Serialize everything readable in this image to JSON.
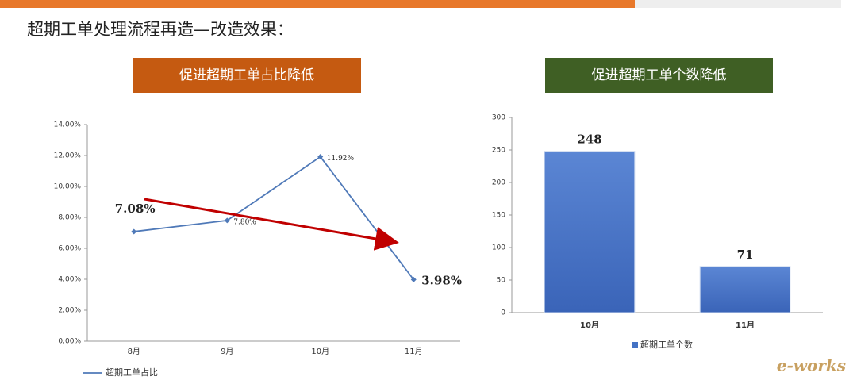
{
  "title": "超期工单处理流程再造—改造效果：",
  "logo": "e-works",
  "chart_data": [
    {
      "type": "line",
      "title": "促进超期工单占比降低",
      "title_color": "#c55a11",
      "categories": [
        "8月",
        "9月",
        "10月",
        "11月"
      ],
      "series": [
        {
          "name": "超期工单占比",
          "color": "#4f79b8",
          "values": [
            7.08,
            7.8,
            11.92,
            3.98
          ],
          "value_labels": [
            "7.08%",
            "7.80%",
            "11.92%",
            "3.98%"
          ]
        }
      ],
      "ylim": [
        0,
        14
      ],
      "yticks": [
        {
          "value": 0,
          "label": "0.00%"
        },
        {
          "value": 2,
          "label": "2.00%"
        },
        {
          "value": 4,
          "label": "4.00%"
        },
        {
          "value": 6,
          "label": "6.00%"
        },
        {
          "value": 8,
          "label": "8.00%"
        },
        {
          "value": 10,
          "label": "10.00%"
        },
        {
          "value": 12,
          "label": "12.00%"
        },
        {
          "value": 14,
          "label": "14.00%"
        }
      ]
    },
    {
      "type": "bar",
      "title": "促进超期工单个数降低",
      "title_color": "#3f5f24",
      "categories": [
        "10月",
        "11月"
      ],
      "series": [
        {
          "name": "超期工单个数",
          "color": "#4472c4",
          "values": [
            248,
            71
          ]
        }
      ],
      "ylim": [
        0,
        300
      ],
      "yticks": [
        0,
        50,
        100,
        150,
        200,
        250,
        300
      ]
    }
  ]
}
